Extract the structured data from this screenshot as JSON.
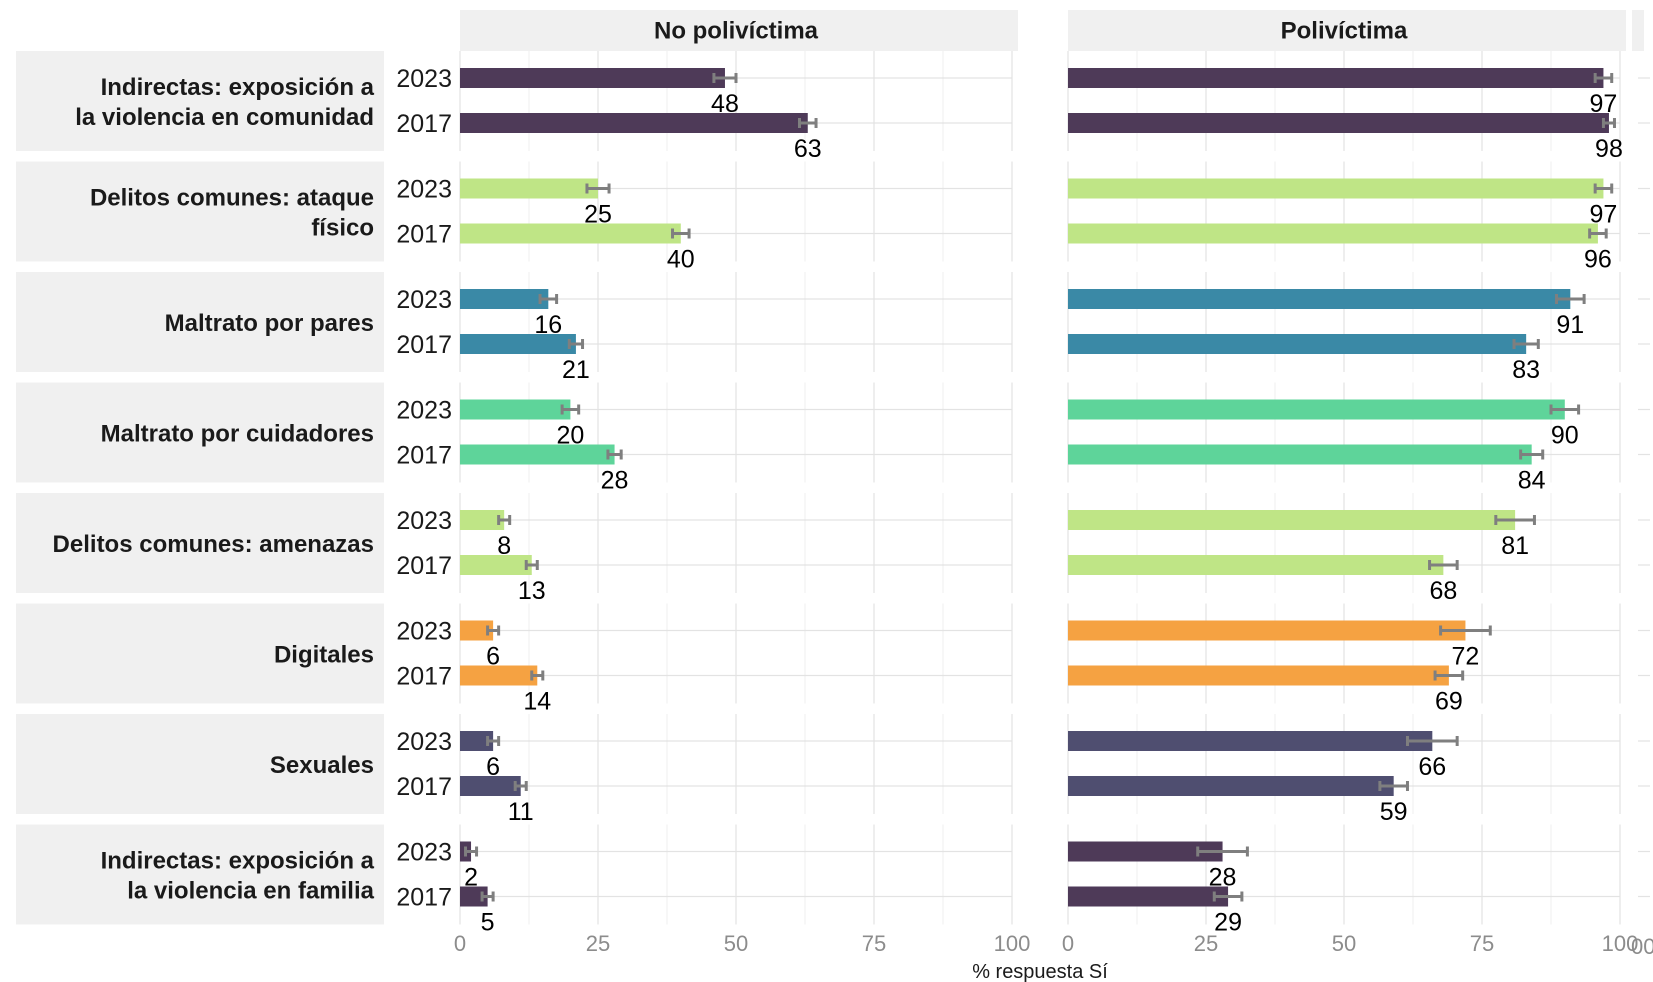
{
  "chart_data": {
    "type": "bar",
    "orientation": "horizontal",
    "xlabel": "% respuesta Sí",
    "xlim": [
      0,
      100
    ],
    "x_ticks": [
      0,
      25,
      50,
      75,
      100
    ],
    "grid": true,
    "panels": [
      "No polivíctima",
      "Polivíctima"
    ],
    "years": [
      "2023",
      "2017"
    ],
    "rows": [
      {
        "label_lines": [
          "Indirectas: exposición a",
          "la violencia en comunidad"
        ],
        "color": "#4e3a58",
        "values": {
          "No polivíctima": {
            "2023": 48,
            "2017": 63
          },
          "Polivíctima": {
            "2023": 97,
            "2017": 98
          }
        },
        "errors": {
          "No polivíctima": {
            "2023": 2,
            "2017": 1.5
          },
          "Polivíctima": {
            "2023": 1.5,
            "2017": 1
          }
        }
      },
      {
        "label_lines": [
          "Delitos comunes: ataque",
          "físico"
        ],
        "color": "#bfe586",
        "values": {
          "No polivíctima": {
            "2023": 25,
            "2017": 40
          },
          "Polivíctima": {
            "2023": 97,
            "2017": 96
          }
        },
        "errors": {
          "No polivíctima": {
            "2023": 2,
            "2017": 1.5
          },
          "Polivíctima": {
            "2023": 1.5,
            "2017": 1.5
          }
        }
      },
      {
        "label_lines": [
          "Maltrato por pares"
        ],
        "color": "#3a89a6",
        "values": {
          "No polivíctima": {
            "2023": 16,
            "2017": 21
          },
          "Polivíctima": {
            "2023": 91,
            "2017": 83
          }
        },
        "errors": {
          "No polivíctima": {
            "2023": 1.5,
            "2017": 1.2
          },
          "Polivíctima": {
            "2023": 2.5,
            "2017": 2.2
          }
        }
      },
      {
        "label_lines": [
          "Maltrato por cuidadores"
        ],
        "color": "#5ed49a",
        "values": {
          "No polivíctima": {
            "2023": 20,
            "2017": 28
          },
          "Polivíctima": {
            "2023": 90,
            "2017": 84
          }
        },
        "errors": {
          "No polivíctima": {
            "2023": 1.5,
            "2017": 1.2
          },
          "Polivíctima": {
            "2023": 2.5,
            "2017": 2
          }
        }
      },
      {
        "label_lines": [
          "Delitos comunes: amenazas"
        ],
        "color": "#bfe586",
        "values": {
          "No polivíctima": {
            "2023": 8,
            "2017": 13
          },
          "Polivíctima": {
            "2023": 81,
            "2017": 68
          }
        },
        "errors": {
          "No polivíctima": {
            "2023": 1,
            "2017": 1
          },
          "Polivíctima": {
            "2023": 3.5,
            "2017": 2.5
          }
        }
      },
      {
        "label_lines": [
          "Digitales"
        ],
        "color": "#f5a242",
        "values": {
          "No polivíctima": {
            "2023": 6,
            "2017": 14
          },
          "Polivíctima": {
            "2023": 72,
            "2017": 69
          }
        },
        "errors": {
          "No polivíctima": {
            "2023": 1,
            "2017": 1
          },
          "Polivíctima": {
            "2023": 4.5,
            "2017": 2.5
          }
        }
      },
      {
        "label_lines": [
          "Sexuales"
        ],
        "color": "#4f4e70",
        "values": {
          "No polivíctima": {
            "2023": 6,
            "2017": 11
          },
          "Polivíctima": {
            "2023": 66,
            "2017": 59
          }
        },
        "errors": {
          "No polivíctima": {
            "2023": 1,
            "2017": 1
          },
          "Polivíctima": {
            "2023": 4.5,
            "2017": 2.5
          }
        }
      },
      {
        "label_lines": [
          "Indirectas: exposición a",
          "la violencia en familia"
        ],
        "color": "#4e3a58",
        "values": {
          "No polivíctima": {
            "2023": 2,
            "2017": 5
          },
          "Polivíctima": {
            "2023": 28,
            "2017": 29
          }
        },
        "errors": {
          "No polivíctima": {
            "2023": 1,
            "2017": 1
          },
          "Polivíctima": {
            "2023": 4.5,
            "2017": 2.5
          }
        }
      }
    ]
  },
  "colors": {
    "strip_bg": "#f0f0f0",
    "grid_major": "#e3e3e3",
    "grid_minor": "#efefef",
    "error_bar": "#7f7f7f"
  },
  "partial_text": {
    "right_edge_tick": "00"
  }
}
